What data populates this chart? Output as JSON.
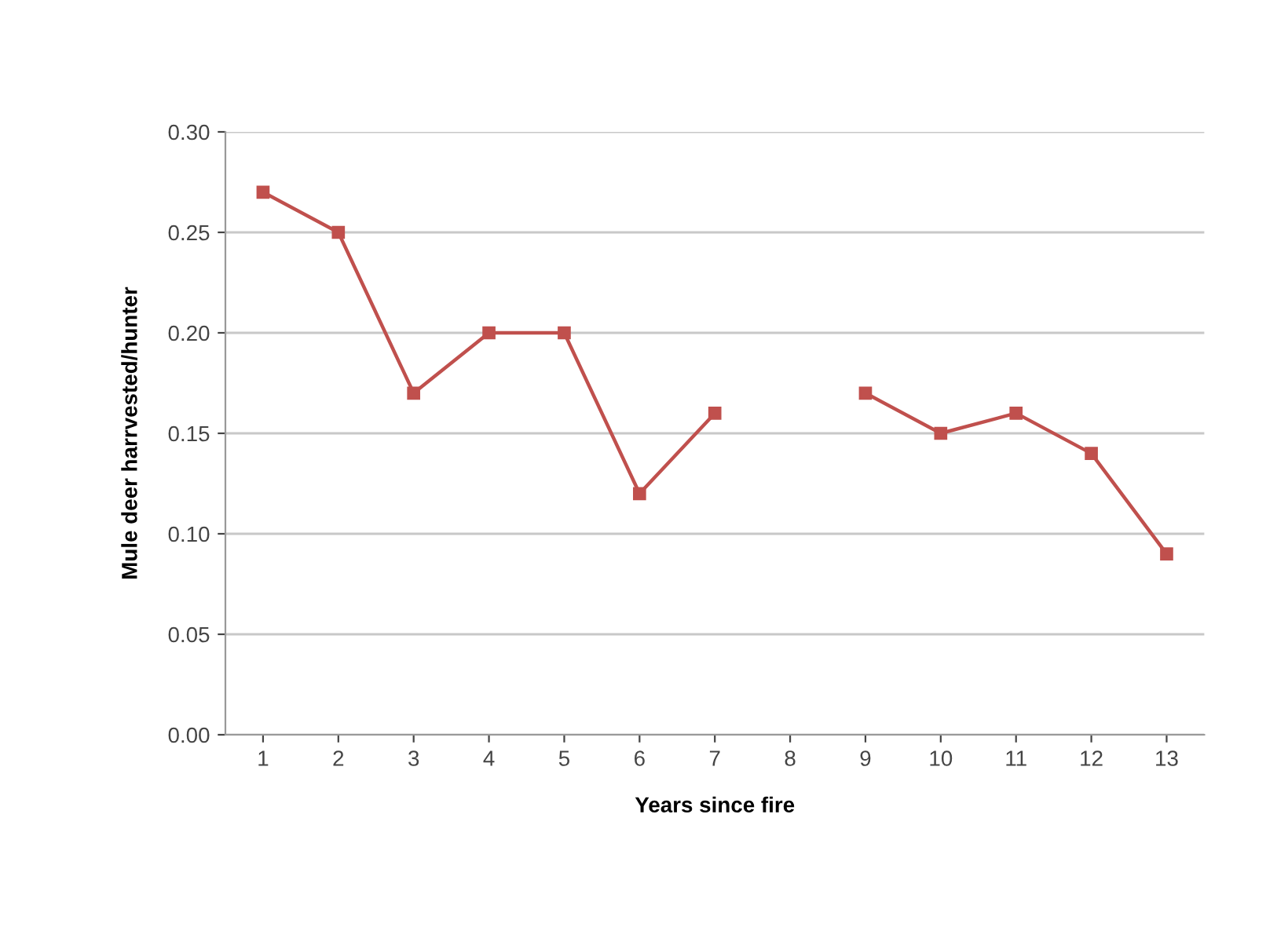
{
  "chart_data": {
    "type": "line",
    "xlabel": "Years since fire",
    "ylabel": "Mule deer harrvested/hunter",
    "categories": [
      "1",
      "2",
      "3",
      "4",
      "5",
      "6",
      "7",
      "8",
      "9",
      "10",
      "11",
      "12",
      "13"
    ],
    "series": [
      {
        "color": "#c0504d",
        "values": [
          0.27,
          0.25,
          0.17,
          0.2,
          0.2,
          0.12,
          0.16,
          null,
          0.17,
          0.15,
          0.16,
          0.14,
          0.09
        ]
      }
    ],
    "ylim": [
      0,
      0.3
    ],
    "yticks": [
      {
        "value": 0,
        "label": "0.00"
      },
      {
        "value": 0.05,
        "label": "0.05"
      },
      {
        "value": 0.1,
        "label": "0.10"
      },
      {
        "value": 0.15,
        "label": "0.15"
      },
      {
        "value": 0.2,
        "label": "0.20"
      },
      {
        "value": 0.25,
        "label": "0.25"
      },
      {
        "value": 0.3,
        "label": "0.30"
      }
    ],
    "grid": "y",
    "marker": "square",
    "line_style": "solid",
    "legend": false
  }
}
